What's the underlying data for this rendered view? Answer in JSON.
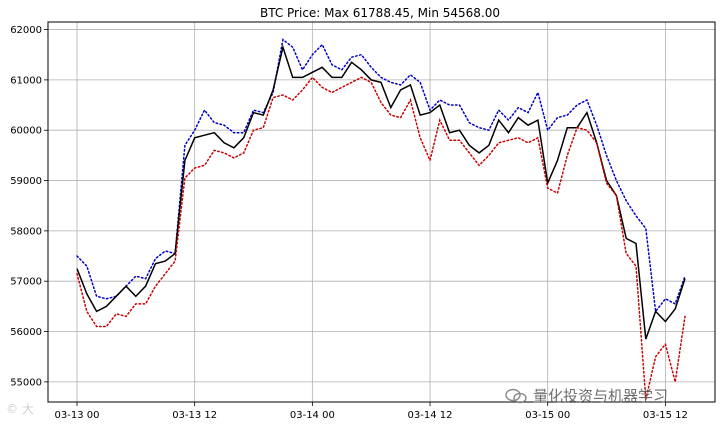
{
  "chart_data": {
    "type": "line",
    "title": "BTC Price: Max 61788.45, Min 54568.00",
    "xlabel": "",
    "ylabel": "",
    "ylim": [
      54600,
      62150
    ],
    "grid": true,
    "x_tick_labels": [
      "03-13 00",
      "03-13 12",
      "03-14 00",
      "03-14 12",
      "03-15 00",
      "03-15 12"
    ],
    "x_tick_hours": [
      0,
      12,
      24,
      36,
      48,
      60
    ],
    "y_ticks": [
      55000,
      56000,
      57000,
      58000,
      59000,
      60000,
      61000,
      62000
    ],
    "x_hours": [
      0,
      1,
      2,
      3,
      4,
      5,
      6,
      7,
      8,
      9,
      10,
      11,
      12,
      13,
      14,
      15,
      16,
      17,
      18,
      19,
      20,
      21,
      22,
      23,
      24,
      25,
      26,
      27,
      28,
      29,
      30,
      31,
      32,
      33,
      34,
      35,
      36,
      37,
      38,
      39,
      40,
      41,
      42,
      43,
      44,
      45,
      46,
      47,
      48,
      49,
      50,
      51,
      52,
      53,
      54,
      55,
      56,
      57,
      58,
      59,
      60,
      61,
      62
    ],
    "series": [
      {
        "color": "#0000cc",
        "style": "dotted",
        "values": [
          57500,
          57300,
          56700,
          56650,
          56700,
          56900,
          57100,
          57050,
          57450,
          57600,
          57550,
          59700,
          60000,
          60400,
          60150,
          60100,
          59950,
          59950,
          60400,
          60350,
          60750,
          61800,
          61650,
          61200,
          61500,
          61700,
          61300,
          61200,
          61450,
          61500,
          61250,
          61050,
          60950,
          60900,
          61100,
          60950,
          60400,
          60600,
          60500,
          60500,
          60150,
          60050,
          60000,
          60400,
          60200,
          60450,
          60350,
          60750,
          60000,
          60250,
          60300,
          60500,
          60600,
          60100,
          59500,
          59000,
          58600,
          58300,
          58050,
          56400,
          56650,
          56550,
          57100
        ]
      },
      {
        "color": "#000000",
        "style": "solid",
        "values": [
          57250,
          56750,
          56400,
          56500,
          56700,
          56900,
          56700,
          56900,
          57350,
          57400,
          57550,
          59400,
          59850,
          59900,
          59950,
          59750,
          59650,
          59850,
          60350,
          60300,
          60800,
          61650,
          61050,
          61050,
          61150,
          61250,
          61050,
          61050,
          61350,
          61200,
          61000,
          60950,
          60450,
          60800,
          60900,
          60300,
          60350,
          60500,
          59950,
          60000,
          59700,
          59550,
          59700,
          60200,
          59950,
          60250,
          60100,
          60200,
          58950,
          59400,
          60050,
          60050,
          60350,
          59750,
          59000,
          58700,
          57850,
          57750,
          55850,
          56400,
          56200,
          56450,
          57050
        ]
      },
      {
        "color": "#cc0000",
        "style": "dotted",
        "values": [
          57150,
          56400,
          56100,
          56100,
          56350,
          56300,
          56550,
          56550,
          56900,
          57150,
          57400,
          59050,
          59250,
          59300,
          59600,
          59550,
          59450,
          59550,
          60000,
          60050,
          60650,
          60700,
          60600,
          60800,
          61050,
          60850,
          60750,
          60850,
          60950,
          61050,
          60950,
          60550,
          60300,
          60250,
          60600,
          59850,
          59400,
          60200,
          59800,
          59800,
          59550,
          59300,
          59500,
          59750,
          59800,
          59850,
          59750,
          59850,
          58850,
          58750,
          59500,
          60050,
          60000,
          59750,
          58950,
          58700,
          57550,
          57300,
          54650,
          55500,
          55750,
          55000,
          56300
        ]
      }
    ]
  },
  "watermark": {
    "text": "量化投资与机器学习",
    "left_mark": "© 大"
  }
}
